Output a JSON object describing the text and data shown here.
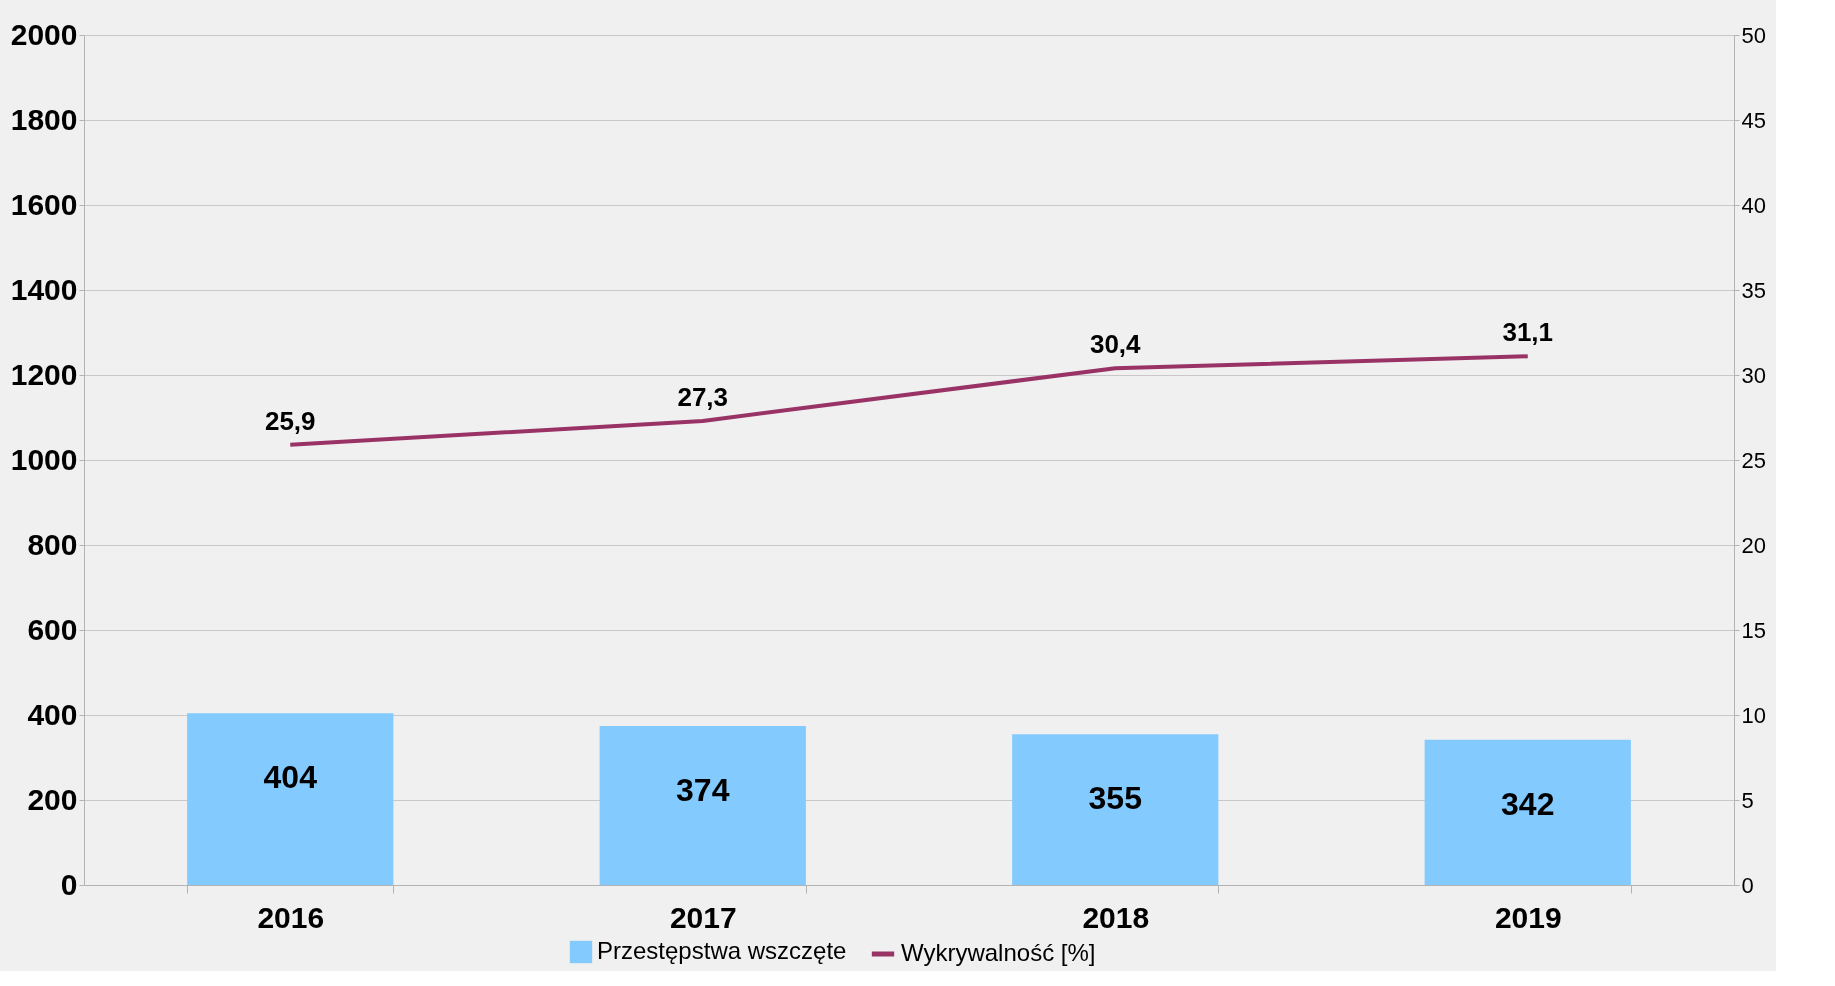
{
  "chart_data": {
    "type": "bar",
    "categories": [
      "2016",
      "2017",
      "2018",
      "2019"
    ],
    "series": [
      {
        "name": "Przestępstwa wszczęte",
        "color": "#83caff",
        "values": [
          404,
          374,
          355,
          342
        ],
        "value_labels": [
          "404",
          "374",
          "355",
          "342"
        ]
      },
      {
        "name": "Wykrywalność [%]",
        "type": "line",
        "axis": "y2",
        "color": "#993366",
        "values": [
          25.9,
          27.3,
          30.4,
          31.1
        ],
        "value_labels": [
          "25,9",
          "27,3",
          "30,4",
          "31,1"
        ]
      }
    ],
    "ylim": [
      0,
      2000
    ],
    "yticks": [
      0,
      200,
      400,
      600,
      800,
      1000,
      1200,
      1400,
      1600,
      1800,
      2000
    ],
    "y2lim": [
      0,
      50
    ],
    "y2ticks": [
      0,
      5,
      10,
      15,
      20,
      25,
      30,
      35,
      40,
      45,
      50
    ],
    "grid": "y",
    "legend": "bottom",
    "marker": "none",
    "line_style": "solid"
  }
}
